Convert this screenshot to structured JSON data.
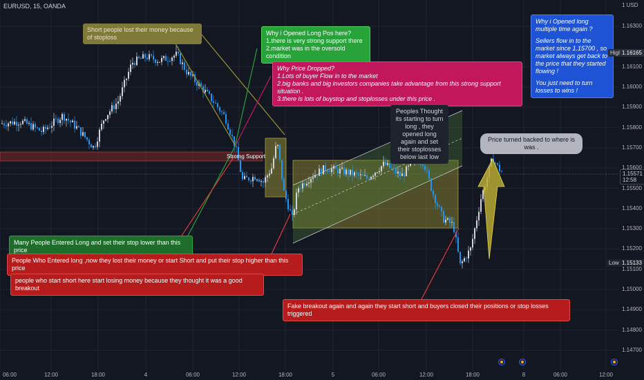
{
  "symbol_title": "EURUSD, 15, OANDA",
  "y_axis": {
    "currency": "USD",
    "ticks": [
      "1.16300",
      "1.16100",
      "1.16000",
      "1.15900",
      "1.15800",
      "1.15700",
      "1.15600",
      "1.15500",
      "1.15400",
      "1.15300",
      "1.15200",
      "1.15100",
      "1.15000",
      "1.14900",
      "1.14800",
      "1.14700"
    ],
    "high_label": "High",
    "high_value": "1.16165",
    "low_label": "Low",
    "low_value": "1.15133",
    "last_value": "1.15571",
    "last_countdown": "12:58"
  },
  "x_axis": {
    "ticks": [
      "06:00",
      "12:00",
      "18:00",
      "4",
      "06:00",
      "12:00",
      "18:00",
      "5",
      "06:00",
      "12:00",
      "18:00",
      "8",
      "06:00",
      "12:00"
    ]
  },
  "support_label": "Stromg Support",
  "notes": {
    "short_lost": "Short people lost their money because of stoploss",
    "why_long": [
      "Why i Opened Long Pos here?",
      "1.there is very strong support there",
      "2.market was in the oversold condition"
    ],
    "why_dropped": [
      "Why Price Dropped?",
      "1.Lots of buyer Flow in to the market",
      "2.big banks and big investors companies take advantage from this strong support situation .",
      "3.there is lots of buystop and stoplosses under this price ."
    ],
    "why_again": [
      "Why i Opened long multiple time  again ?",
      "",
      "Sellers flow in to the market since 1.15700 , so market always get back to the price that they started flowing !",
      "",
      "You just need to turn losses to wins !"
    ],
    "peoples_thought": "Peoples Thought its starting to turn long , they opened long again and set their stoplosses below last low",
    "price_turned": "Price turned backed to where is was .",
    "entered_long": "Many People Entered Long and set their stop lower than this price",
    "lost_money": "People Who Entered long ,now they lost their money or start Short and put their stop higher than  this price",
    "start_short": "people who start short here start losing money because they thought it was a good breakout",
    "fake_breakout": "Fake breakout again and again they start short and buyers closed their positions or stop losses triggered"
  },
  "colors": {
    "up": "#d1d4dc",
    "down": "#2196f3",
    "support": "#b71c1c",
    "olive": "#7f7a3a",
    "green": "#27a33a",
    "pink": "#c2185b",
    "blue": "#1e53d6",
    "red": "#b71c1c",
    "arrow": "#b8a832"
  }
}
